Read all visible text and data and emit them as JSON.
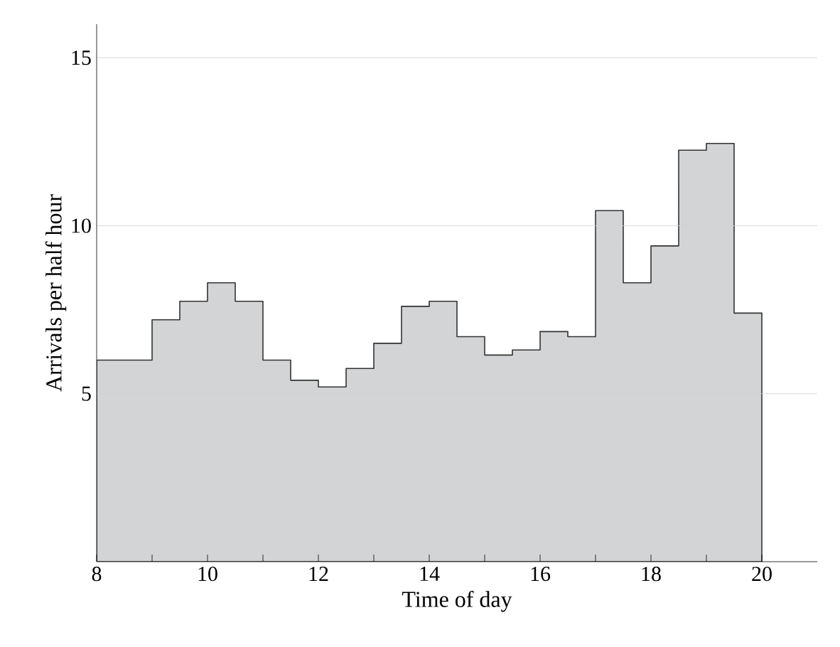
{
  "chart_data": {
    "type": "histogram",
    "xlabel": "Time of day",
    "ylabel": "Arrivals per half hour",
    "bins": [
      8,
      8.5,
      9,
      9.5,
      10,
      10.5,
      11,
      11.5,
      12,
      12.5,
      13,
      13.5,
      14,
      14.5,
      15,
      15.5,
      16,
      16.5,
      17,
      17.5,
      18,
      18.5,
      19,
      19.5,
      20
    ],
    "values": [
      6.0,
      6.0,
      7.2,
      7.75,
      8.3,
      7.75,
      6.0,
      5.4,
      5.2,
      5.75,
      6.5,
      7.6,
      7.75,
      6.7,
      6.15,
      6.3,
      6.85,
      6.7,
      10.45,
      8.3,
      9.4,
      12.25,
      12.45,
      7.4
    ],
    "color": "#d3d4d6",
    "xlim": [
      8,
      21
    ],
    "ylim": [
      0,
      16
    ],
    "xticks": [
      8,
      {
        "value": 9,
        "label": null
      },
      10,
      {
        "value": 11,
        "label": null
      },
      12,
      {
        "value": 13,
        "label": null
      },
      14,
      {
        "value": 15,
        "label": null
      },
      16,
      {
        "value": 17,
        "label": null
      },
      18,
      {
        "value": 19,
        "label": null
      },
      20
    ],
    "yticks": [
      5,
      10,
      15
    ],
    "grid": "y"
  }
}
